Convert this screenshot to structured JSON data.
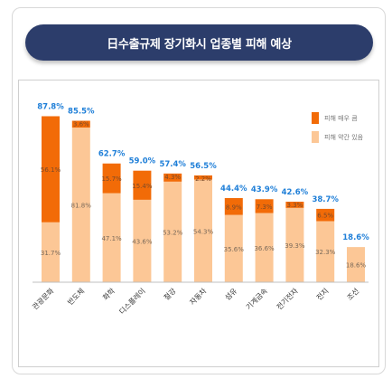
{
  "title": "日수출규제 장기화시 업종별 피해 예상",
  "colors": {
    "severe": "#f26b07",
    "some": "#fcc796",
    "total": "#1f7fd8",
    "title_bg": "#2c3d6b"
  },
  "legend": [
    {
      "label": "피해 매우 큼",
      "color_key": "severe"
    },
    {
      "label": "피해 약간 있음",
      "color_key": "some"
    }
  ],
  "chart_data": {
    "type": "bar",
    "stacked": true,
    "categories": [
      "관광문화",
      "반도체",
      "화학",
      "디스플레이",
      "철강",
      "자동차",
      "섬유",
      "기계금속",
      "전기전자",
      "전지",
      "조선"
    ],
    "totals": [
      "87.8%",
      "85.5%",
      "62.7%",
      "59.0%",
      "57.4%",
      "56.5%",
      "44.4%",
      "43.9%",
      "42.6%",
      "38.7%",
      "18.6%"
    ],
    "series": [
      {
        "name": "피해 약간 있음",
        "values": [
          31.7,
          81.8,
          47.1,
          43.6,
          53.2,
          54.3,
          35.6,
          36.6,
          39.3,
          32.3,
          18.6
        ]
      },
      {
        "name": "피해 매우 큼",
        "values": [
          56.1,
          3.6,
          15.7,
          15.4,
          4.3,
          2.2,
          8.9,
          7.3,
          3.3,
          6.5,
          0
        ]
      }
    ],
    "segment_labels": {
      "some": [
        "31.7%",
        "81.8%",
        "47.1%",
        "43.6%",
        "53.2%",
        "54.3%",
        "35.6%",
        "36.6%",
        "39.3%",
        "32.3%",
        "18.6%"
      ],
      "severe": [
        "56.1%",
        "3.6%",
        "15.7%",
        "15.4%",
        "4.3%",
        "2.2%",
        "8.9%",
        "7.3%",
        "3.3%",
        "6.5%",
        ""
      ]
    },
    "ylim": [
      0,
      100
    ],
    "legend_position": "top-right",
    "grid": false
  }
}
